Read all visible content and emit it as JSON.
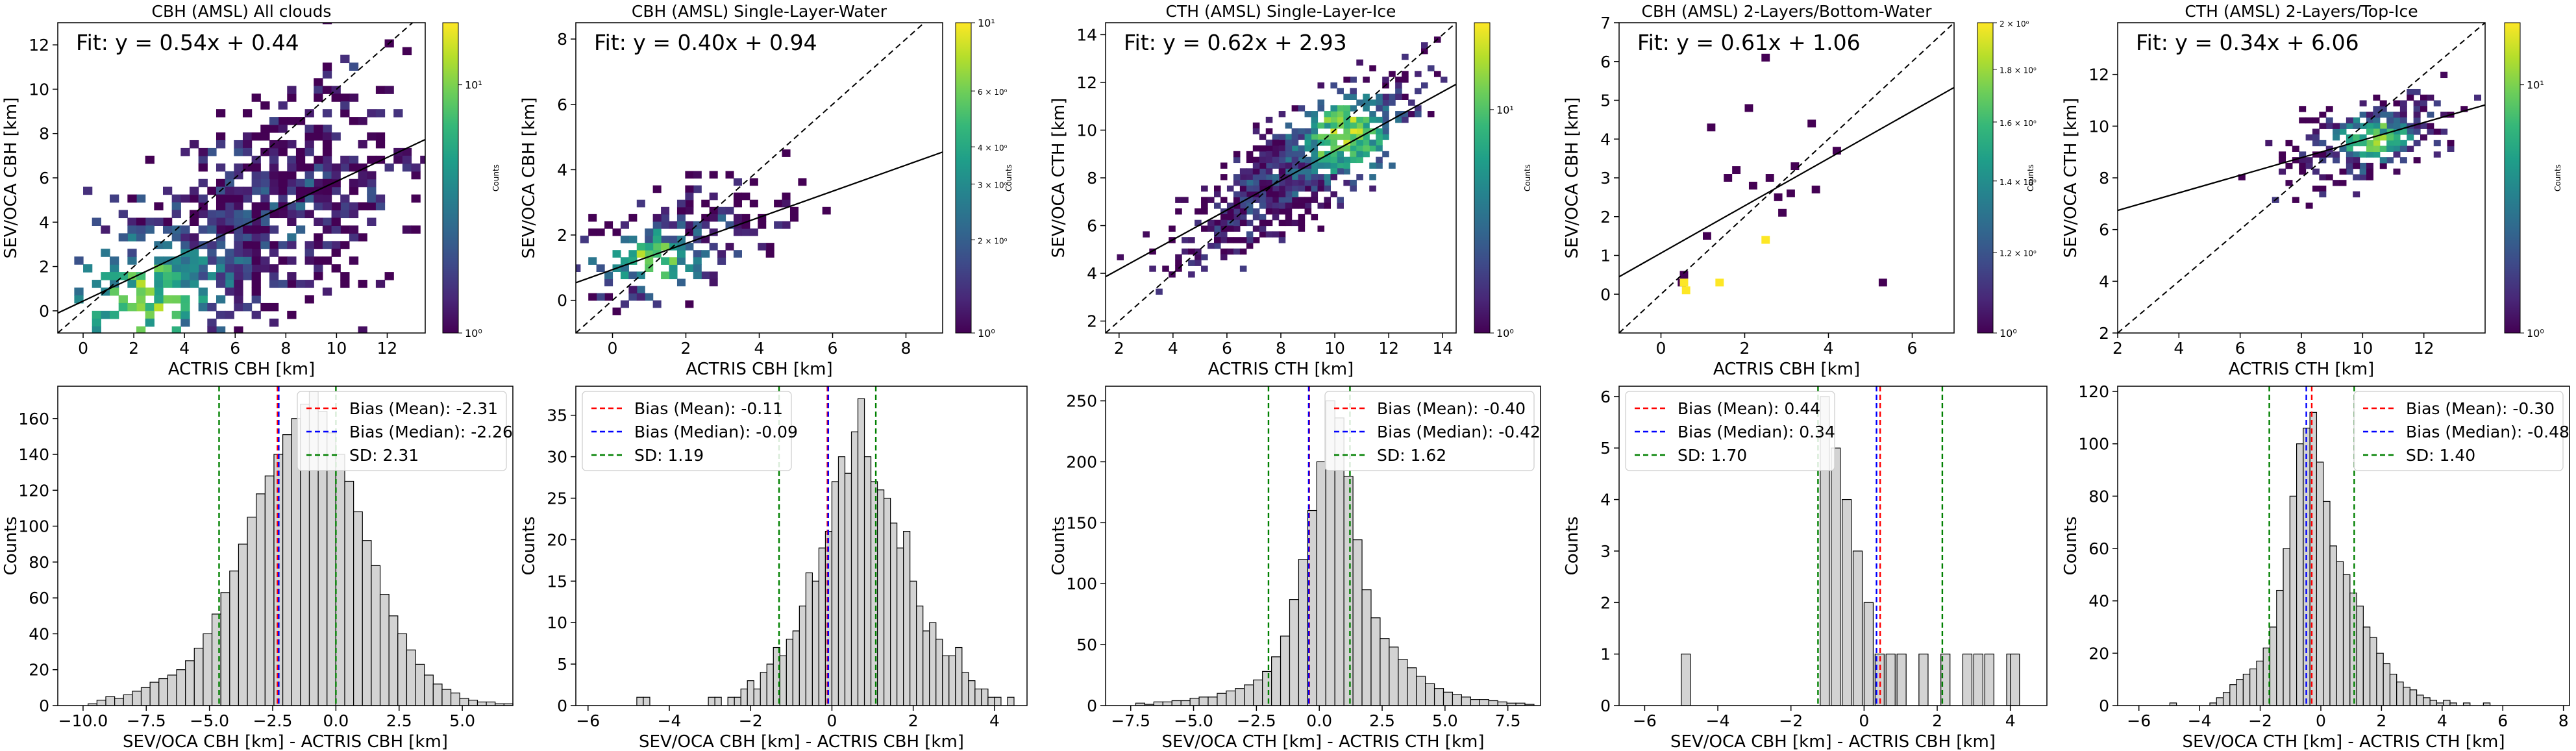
{
  "chart_data": [
    {
      "type": "heatmap",
      "title": "CBH (AMSL) All clouds",
      "xlabel": "ACTRIS CBH [km]",
      "ylabel": "SEV/OCA CBH [km]",
      "xlim": [
        -1,
        13.5
      ],
      "ylim": [
        -1,
        13
      ],
      "xticks": [
        0,
        2,
        4,
        6,
        8,
        10,
        12
      ],
      "yticks": [
        0,
        2,
        4,
        6,
        8,
        10,
        12
      ],
      "fit_text": "Fit: y = 0.54x + 0.44",
      "fit": {
        "slope": 0.54,
        "intercept": 0.44
      },
      "one_to_one_line": true,
      "density": {
        "center": [
          6.5,
          4.0
        ],
        "spread": [
          3.2,
          2.8
        ],
        "corr": 0.55,
        "cell": 0.35,
        "ncells": 700,
        "peak": [
          2.5,
          0.5
        ]
      },
      "colorbar": {
        "label": "Counts",
        "scale": "log",
        "ticks": [
          "10¹",
          "10⁰"
        ],
        "ticks_pos": [
          0.2,
          1.0
        ],
        "colormap": "viridis"
      }
    },
    {
      "type": "heatmap",
      "title": "CBH (AMSL) Single-Layer-Water",
      "xlabel": "ACTRIS CBH [km]",
      "ylabel": "SEV/OCA CBH [km]",
      "xlim": [
        -1,
        9
      ],
      "ylim": [
        -1,
        8.5
      ],
      "xticks": [
        0,
        2,
        4,
        6,
        8
      ],
      "yticks": [
        0,
        2,
        4,
        6,
        8
      ],
      "fit_text": "Fit: y = 0.40x + 0.94",
      "fit": {
        "slope": 0.4,
        "intercept": 0.94
      },
      "one_to_one_line": true,
      "density": {
        "center": [
          1.8,
          1.8
        ],
        "spread": [
          1.3,
          1.0
        ],
        "corr": 0.45,
        "cell": 0.22,
        "ncells": 190,
        "peak": [
          1.2,
          1.2
        ]
      },
      "colorbar": {
        "label": "Counts",
        "scale": "log",
        "ticks": [
          "10¹",
          "6 × 10⁰",
          "4 × 10⁰",
          "3 × 10⁰",
          "2 × 10⁰",
          "10⁰"
        ],
        "ticks_pos": [
          0.0,
          0.22,
          0.4,
          0.52,
          0.7,
          1.0
        ],
        "colormap": "viridis"
      }
    },
    {
      "type": "heatmap",
      "title": "CTH (AMSL) Single-Layer-Ice",
      "xlabel": "ACTRIS CTH [km]",
      "ylabel": "SEV/OCA CTH [km]",
      "xlim": [
        1.5,
        14.5
      ],
      "ylim": [
        1.5,
        14.5
      ],
      "xticks": [
        2,
        4,
        6,
        8,
        10,
        12,
        14
      ],
      "yticks": [
        2,
        4,
        6,
        8,
        10,
        12,
        14
      ],
      "fit_text": "Fit: y = 0.62x + 2.93",
      "fit": {
        "slope": 0.62,
        "intercept": 2.93
      },
      "one_to_one_line": true,
      "density": {
        "center": [
          8.5,
          8.3
        ],
        "spread": [
          2.0,
          1.8
        ],
        "corr": 0.8,
        "cell": 0.24,
        "ncells": 820,
        "peak": [
          10.5,
          9.8
        ]
      },
      "colorbar": {
        "label": "Counts",
        "scale": "log",
        "ticks": [
          "10¹",
          "10⁰"
        ],
        "ticks_pos": [
          0.28,
          1.0
        ],
        "colormap": "viridis"
      }
    },
    {
      "type": "heatmap",
      "title": "CBH (AMSL) 2-Layers/Bottom-Water",
      "xlabel": "ACTRIS CBH [km]",
      "ylabel": "SEV/OCA CBH [km]",
      "xlim": [
        -1,
        7
      ],
      "ylim": [
        -1,
        7
      ],
      "xticks": [
        0,
        2,
        4,
        6
      ],
      "yticks": [
        0,
        1,
        2,
        3,
        4,
        5,
        6,
        7
      ],
      "fit_text": "Fit: y = 0.61x + 1.06",
      "fit": {
        "slope": 0.61,
        "intercept": 1.06
      },
      "one_to_one_line": true,
      "cells": [
        [
          0.4,
          0.2,
          0
        ],
        [
          0.45,
          0.4,
          0
        ],
        [
          0.5,
          0.0,
          1
        ],
        [
          0.45,
          0.2,
          1
        ],
        [
          1.3,
          0.2,
          1
        ],
        [
          2.4,
          1.3,
          1
        ],
        [
          1.1,
          4.2,
          0
        ],
        [
          1.7,
          3.1,
          0
        ],
        [
          1.5,
          2.9,
          0
        ],
        [
          1.0,
          1.4,
          0
        ],
        [
          2.0,
          4.7,
          0
        ],
        [
          2.4,
          6.0,
          0
        ],
        [
          3.1,
          3.2,
          0
        ],
        [
          2.5,
          2.9,
          0
        ],
        [
          2.7,
          2.4,
          0
        ],
        [
          3.0,
          2.5,
          0
        ],
        [
          3.6,
          2.6,
          0
        ],
        [
          4.1,
          3.6,
          0
        ],
        [
          3.5,
          4.3,
          0
        ],
        [
          2.8,
          2.0,
          0
        ],
        [
          5.2,
          0.2,
          0
        ],
        [
          2.1,
          2.7,
          0
        ]
      ],
      "colorbar": {
        "label": "Counts",
        "scale": "log",
        "ticks": [
          "2 × 10⁰",
          "1.8 × 10⁰",
          "1.6 × 10⁰",
          "1.4 × 10⁰",
          "1.2 × 10⁰",
          "10⁰"
        ],
        "ticks_pos": [
          0.0,
          0.15,
          0.32,
          0.51,
          0.74,
          1.0
        ],
        "colormap": "viridis"
      }
    },
    {
      "type": "heatmap",
      "title": "CTH (AMSL) 2-Layers/Top-Ice",
      "xlabel": "ACTRIS CTH [km]",
      "ylabel": "SEV/OCA CTH [km]",
      "xlim": [
        2,
        14
      ],
      "ylim": [
        2,
        14
      ],
      "xticks": [
        2,
        4,
        6,
        8,
        10,
        12
      ],
      "yticks": [
        2,
        4,
        6,
        8,
        10,
        12
      ],
      "fit_text": "Fit: y = 0.34x + 6.06",
      "fit": {
        "slope": 0.34,
        "intercept": 6.06
      },
      "one_to_one_line": true,
      "density": {
        "center": [
          10.3,
          9.6
        ],
        "spread": [
          1.3,
          0.9
        ],
        "corr": 0.45,
        "cell": 0.22,
        "ncells": 280,
        "peak": [
          10.3,
          9.5
        ]
      },
      "colorbar": {
        "label": "Counts",
        "scale": "log",
        "ticks": [
          "10¹",
          "10⁰"
        ],
        "ticks_pos": [
          0.2,
          1.0
        ],
        "colormap": "viridis"
      }
    },
    {
      "type": "bar",
      "subtype": "histogram",
      "xlabel": "SEV/OCA CBH [km] - ACTRIS CBH [km]",
      "ylabel": "Counts",
      "xlim": [
        -11,
        7
      ],
      "ylim": [
        0,
        178
      ],
      "xticks": [
        -10.0,
        -7.5,
        -5.0,
        -2.5,
        0.0,
        2.5,
        5.0
      ],
      "xtick_labels": [
        "−10.0",
        "−7.5",
        "−5.0",
        "−2.5",
        "0.0",
        "2.5",
        "5.0"
      ],
      "yticks": [
        0,
        20,
        40,
        60,
        80,
        100,
        120,
        140,
        160
      ],
      "bins": {
        "start": -9.8,
        "width": 0.35,
        "counts": [
          1,
          3,
          5,
          4,
          6,
          8,
          10,
          13,
          15,
          17,
          20,
          25,
          32,
          40,
          51,
          63,
          75,
          90,
          105,
          118,
          128,
          140,
          151,
          160,
          168,
          175,
          164,
          152,
          140,
          125,
          108,
          92,
          78,
          62,
          50,
          40,
          31,
          23,
          17,
          12,
          9,
          7,
          4,
          3,
          2,
          2,
          1,
          1
        ]
      },
      "lines": {
        "mean": -2.31,
        "median": -2.26,
        "sd_lo": -4.62,
        "sd_hi": 0.0
      },
      "legend": [
        "Bias (Mean): -2.31",
        "Bias (Median): -2.26",
        "SD: 2.31"
      ],
      "legend_position": "top-right"
    },
    {
      "type": "bar",
      "subtype": "histogram",
      "xlabel": "SEV/OCA CBH [km] - ACTRIS CBH [km]",
      "ylabel": "Counts",
      "xlim": [
        -6.3,
        4.8
      ],
      "ylim": [
        0,
        38.5
      ],
      "xticks": [
        -6,
        -4,
        -2,
        0,
        2,
        4
      ],
      "xtick_labels": [
        "−6",
        "−4",
        "−2",
        "0",
        "2",
        "4"
      ],
      "yticks": [
        0,
        5,
        10,
        15,
        20,
        25,
        30,
        35
      ],
      "bins": {
        "start": -4.8,
        "width": 0.16,
        "counts": [
          1,
          1,
          0,
          0,
          0,
          0,
          0,
          0,
          0,
          0,
          0,
          1,
          1,
          0,
          1,
          1,
          2,
          3,
          2,
          4,
          5,
          7,
          6,
          8,
          9,
          12,
          16,
          15,
          19,
          21,
          27,
          30,
          28,
          33,
          37,
          30,
          27,
          26,
          25,
          22,
          19,
          21,
          15,
          12,
          9,
          10,
          8,
          6,
          6,
          7,
          4,
          3,
          2,
          2,
          1,
          1,
          0,
          1
        ]
      },
      "lines": {
        "mean": -0.11,
        "median": -0.09,
        "sd_lo": -1.3,
        "sd_hi": 1.08
      },
      "legend": [
        "Bias (Mean): -0.11",
        "Bias (Median): -0.09",
        "SD: 1.19"
      ],
      "legend_position": "top-left"
    },
    {
      "type": "bar",
      "subtype": "histogram",
      "xlabel": "SEV/OCA CTH [km] - ACTRIS CTH [km]",
      "ylabel": "Counts",
      "xlim": [
        -8.5,
        8.8
      ],
      "ylim": [
        0,
        262
      ],
      "xticks": [
        -7.5,
        -5.0,
        -2.5,
        0.0,
        2.5,
        5.0,
        7.5
      ],
      "xtick_labels": [
        "−7.5",
        "−5.0",
        "−2.5",
        "0.0",
        "2.5",
        "5.0",
        "7.5"
      ],
      "yticks": [
        0,
        50,
        100,
        150,
        200,
        250
      ],
      "bins": {
        "start": -7.3,
        "width": 0.36,
        "counts": [
          2,
          1,
          3,
          3,
          4,
          4,
          6,
          7,
          7,
          10,
          12,
          14,
          17,
          21,
          28,
          40,
          57,
          87,
          120,
          160,
          200,
          250,
          236,
          188,
          136,
          95,
          72,
          55,
          48,
          38,
          31,
          24,
          18,
          14,
          11,
          9,
          7,
          5,
          5,
          4,
          3,
          2,
          2,
          1
        ]
      },
      "lines": {
        "mean": -0.4,
        "median": -0.42,
        "sd_lo": -2.02,
        "sd_hi": 1.22
      },
      "legend": [
        "Bias (Mean): -0.40",
        "Bias (Median): -0.42",
        "SD: 1.62"
      ],
      "legend_position": "top-right"
    },
    {
      "type": "bar",
      "subtype": "histogram",
      "xlabel": "SEV/OCA CBH [km] - ACTRIS CBH [km]",
      "ylabel": "Counts",
      "xlim": [
        -6.7,
        5.0
      ],
      "ylim": [
        0,
        6.2
      ],
      "xticks": [
        -6,
        -4,
        -2,
        0,
        2,
        4
      ],
      "xtick_labels": [
        "−6",
        "−4",
        "−2",
        "0",
        "2",
        "4"
      ],
      "yticks": [
        0,
        1,
        2,
        3,
        4,
        5,
        6
      ],
      "bars": [
        [
          -5.0,
          1
        ],
        [
          -1.2,
          6
        ],
        [
          -0.9,
          5
        ],
        [
          -0.6,
          4
        ],
        [
          -0.3,
          3
        ],
        [
          0.0,
          2
        ],
        [
          0.3,
          1
        ],
        [
          0.6,
          1
        ],
        [
          0.9,
          1
        ],
        [
          1.5,
          1
        ],
        [
          2.1,
          1
        ],
        [
          2.7,
          1
        ],
        [
          3.0,
          1
        ],
        [
          3.3,
          1
        ],
        [
          3.9,
          1
        ],
        [
          4.0,
          1
        ]
      ],
      "bar_width": 0.25,
      "lines": {
        "mean": 0.44,
        "median": 0.34,
        "sd_lo": -1.26,
        "sd_hi": 2.14
      },
      "legend": [
        "Bias (Mean): 0.44",
        "Bias (Median): 0.34",
        "SD: 1.70"
      ],
      "legend_position": "top-left"
    },
    {
      "type": "bar",
      "subtype": "histogram",
      "xlabel": "SEV/OCA CTH [km] - ACTRIS CTH [km]",
      "ylabel": "Counts",
      "xlim": [
        -6.7,
        8.2
      ],
      "ylim": [
        0,
        122
      ],
      "xticks": [
        -6,
        -4,
        -2,
        0,
        2,
        4,
        6,
        8
      ],
      "xtick_labels": [
        "−6",
        "−4",
        "−2",
        "0",
        "2",
        "4",
        "6",
        "8"
      ],
      "yticks": [
        0,
        20,
        40,
        60,
        80,
        100,
        120
      ],
      "bins": {
        "start": -5.2,
        "width": 0.22,
        "counts": [
          0,
          1,
          0,
          0,
          0,
          0,
          0,
          1,
          3,
          5,
          8,
          10,
          12,
          14,
          17,
          22,
          30,
          44,
          60,
          80,
          100,
          106,
          112,
          93,
          78,
          61,
          55,
          50,
          43,
          38,
          30,
          26,
          20,
          16,
          12,
          9,
          7,
          6,
          4,
          3,
          2,
          1,
          2,
          1,
          0,
          1,
          0,
          0,
          1
        ]
      },
      "lines": {
        "mean": -0.3,
        "median": -0.48,
        "sd_lo": -1.7,
        "sd_hi": 1.1
      },
      "legend": [
        "Bias (Mean): -0.30",
        "Bias (Median): -0.48",
        "SD: 1.40"
      ],
      "legend_position": "top-right"
    }
  ]
}
